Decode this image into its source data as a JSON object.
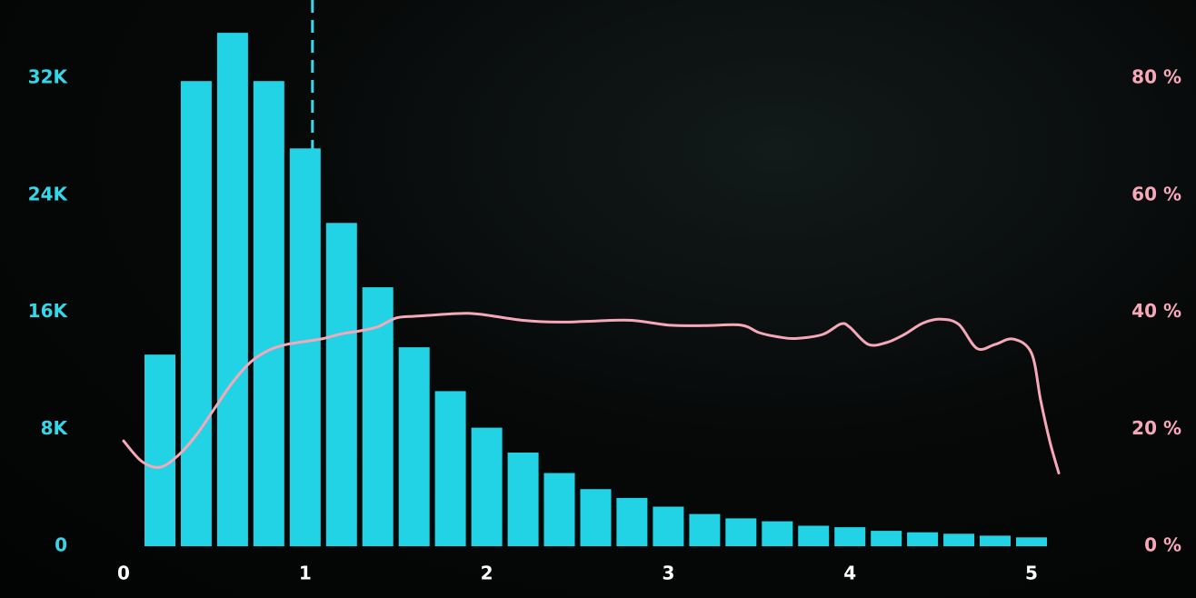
{
  "chart_data": {
    "type": "bar",
    "title": "",
    "xlabel": "",
    "ylabel": "",
    "y2label": "",
    "xlim": [
      0,
      5
    ],
    "ylim": [
      0,
      32000
    ],
    "y2lim": [
      0,
      80
    ],
    "x_ticks": [
      "0",
      "1",
      "2",
      "3",
      "4",
      "5"
    ],
    "y_ticks": [
      "0",
      "8K",
      "16K",
      "24K",
      "32K"
    ],
    "y2_ticks": [
      "0 %",
      "20 %",
      "40 %",
      "60 %",
      "80 %"
    ],
    "grid": false,
    "reference_line_x": 1.04,
    "colors": {
      "bars": "#22d3e6",
      "line": "#f7a8b8",
      "left_axis": "#34d6e8",
      "right_axis": "#f7a8b8",
      "x_axis": "#ffffff",
      "reference_line": "#3ad8ea"
    },
    "bars": {
      "x": [
        0.2,
        0.4,
        0.6,
        0.8,
        1.0,
        1.2,
        1.4,
        1.6,
        1.8,
        2.0,
        2.2,
        2.4,
        2.6,
        2.8,
        3.0,
        3.2,
        3.4,
        3.6,
        3.8,
        4.0,
        4.2,
        4.4,
        4.6,
        4.8,
        5.0
      ],
      "values": [
        13100,
        31800,
        35100,
        31800,
        27200,
        22100,
        17700,
        13600,
        10600,
        8100,
        6400,
        5000,
        3900,
        3300,
        2700,
        2200,
        1900,
        1700,
        1400,
        1300,
        1050,
        950,
        850,
        720,
        600
      ],
      "axis": "left"
    },
    "line": {
      "axis": "right",
      "x": [
        0.0,
        0.1,
        0.2,
        0.3,
        0.4,
        0.5,
        0.6,
        0.7,
        0.8,
        0.9,
        1.0,
        1.1,
        1.2,
        1.3,
        1.4,
        1.5,
        1.6,
        1.7,
        1.8,
        1.9,
        2.0,
        2.2,
        2.4,
        2.6,
        2.8,
        3.0,
        3.2,
        3.4,
        3.5,
        3.6,
        3.7,
        3.85,
        3.95,
        4.0,
        4.1,
        4.2,
        4.3,
        4.4,
        4.5,
        4.6,
        4.7,
        4.8,
        4.9,
        5.0,
        5.05,
        5.1,
        5.15
      ],
      "values": [
        18,
        14.5,
        13.5,
        15.5,
        19,
        23.5,
        28,
        31.5,
        33.5,
        34.5,
        35,
        35.5,
        36.3,
        36.8,
        37.5,
        39,
        39.3,
        39.5,
        39.7,
        39.8,
        39.5,
        38.6,
        38.3,
        38.5,
        38.6,
        37.8,
        37.7,
        37.8,
        36.5,
        35.8,
        35.5,
        36.2,
        38,
        37.4,
        34.5,
        34.8,
        36.2,
        38.1,
        38.8,
        37.9,
        33.8,
        34.5,
        35.4,
        33,
        25,
        18,
        12.5
      ]
    }
  }
}
